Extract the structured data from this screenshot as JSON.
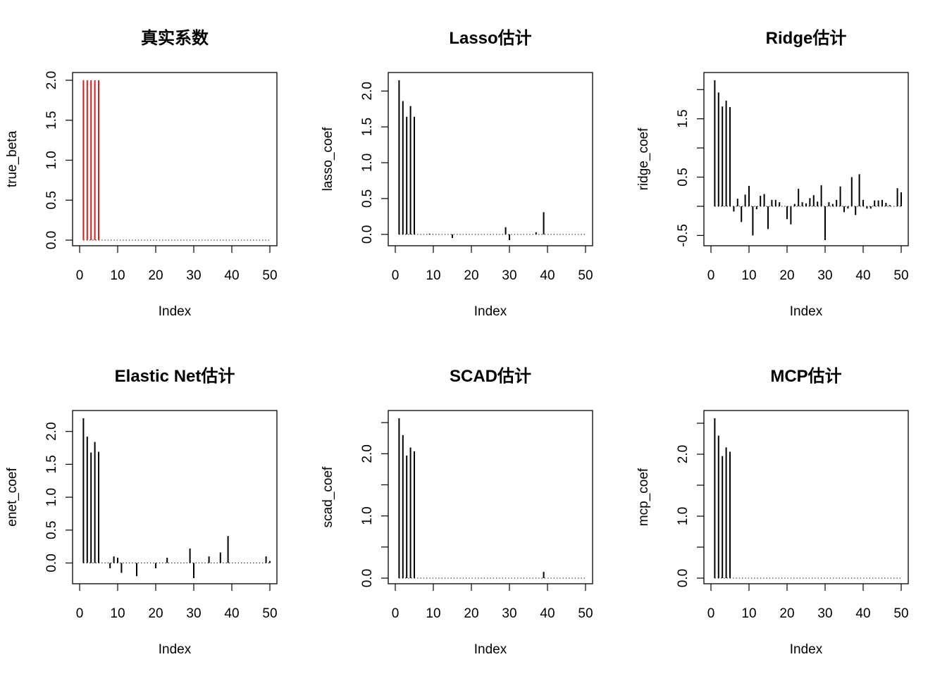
{
  "chart_data": [
    {
      "type": "bar",
      "title": "真实系数",
      "xlabel": "Index",
      "ylabel": "true_beta",
      "xlim": [
        0,
        50
      ],
      "ylim": [
        0,
        2
      ],
      "yticks": [
        0,
        0.5,
        1,
        1.5,
        2
      ],
      "yticklabels": [
        "0.0",
        "0.5",
        "1.0",
        "1.5",
        "2.0"
      ],
      "xticks": [
        0,
        10,
        20,
        30,
        40,
        50
      ],
      "color": "#e0191a",
      "values": [
        2,
        2,
        2,
        2,
        2,
        0,
        0,
        0,
        0,
        0,
        0,
        0,
        0,
        0,
        0,
        0,
        0,
        0,
        0,
        0,
        0,
        0,
        0,
        0,
        0,
        0,
        0,
        0,
        0,
        0,
        0,
        0,
        0,
        0,
        0,
        0,
        0,
        0,
        0,
        0,
        0,
        0,
        0,
        0,
        0,
        0,
        0,
        0,
        0,
        0
      ]
    },
    {
      "type": "bar",
      "title": "Lasso估计",
      "xlabel": "Index",
      "ylabel": "lasso_coef",
      "xlim": [
        0,
        50
      ],
      "ylim": [
        -0.08,
        2.15
      ],
      "yticks": [
        0,
        0.5,
        1,
        1.5,
        2
      ],
      "yticklabels": [
        "0.0",
        "0.5",
        "1.0",
        "1.5",
        "2.0"
      ],
      "xticks": [
        0,
        10,
        20,
        30,
        40,
        50
      ],
      "color": "#000000",
      "values": [
        2.15,
        1.86,
        1.64,
        1.79,
        1.64,
        0,
        0,
        0,
        0.01,
        0,
        0,
        0,
        0,
        0,
        -0.05,
        0,
        0,
        0,
        0,
        0,
        0,
        0,
        0,
        0,
        0,
        0,
        0,
        0,
        0.1,
        -0.08,
        0,
        0,
        0,
        0,
        0,
        0,
        0.03,
        0,
        0.31,
        0,
        0,
        0,
        0,
        0,
        0,
        0,
        0,
        0,
        0,
        0
      ]
    },
    {
      "type": "bar",
      "title": "Ridge估计",
      "xlabel": "Index",
      "ylabel": "ridge_coef",
      "xlim": [
        0,
        50
      ],
      "ylim": [
        -0.58,
        2.16
      ],
      "yticks": [
        -0.5,
        0,
        0.5,
        1,
        1.5,
        2
      ],
      "yticklabels": [
        "-0.5",
        "",
        "0.5",
        "",
        "1.5",
        ""
      ],
      "xticks": [
        0,
        10,
        20,
        30,
        40,
        50
      ],
      "color": "#000000",
      "values": [
        2.16,
        1.95,
        1.71,
        1.81,
        1.7,
        -0.09,
        0.13,
        -0.27,
        0.2,
        0.35,
        -0.5,
        -0.05,
        0.18,
        0.21,
        -0.39,
        0.11,
        0.11,
        0.07,
        0,
        -0.22,
        -0.31,
        0.04,
        0.3,
        0.07,
        0.05,
        0.14,
        0.19,
        0.08,
        0.36,
        -0.58,
        0.07,
        0.04,
        0.11,
        0.34,
        -0.1,
        -0.04,
        0.5,
        -0.15,
        0.55,
        0.11,
        -0.04,
        -0.04,
        0.1,
        0.1,
        0.11,
        0.06,
        0.02,
        0,
        0.31,
        0.24
      ]
    },
    {
      "type": "bar",
      "title": "Elastic Net估计",
      "xlabel": "Index",
      "ylabel": "enet_coef",
      "xlim": [
        0,
        50
      ],
      "ylim": [
        -0.23,
        2.2
      ],
      "yticks": [
        0,
        0.5,
        1,
        1.5,
        2
      ],
      "yticklabels": [
        "0.0",
        "0.5",
        "1.0",
        "1.5",
        "2.0"
      ],
      "xticks": [
        0,
        10,
        20,
        30,
        40,
        50
      ],
      "color": "#000000",
      "values": [
        2.2,
        1.92,
        1.68,
        1.84,
        1.69,
        0,
        0,
        -0.08,
        0.1,
        0.08,
        -0.15,
        0,
        0,
        0,
        -0.2,
        0,
        0,
        0,
        0,
        -0.08,
        0,
        0,
        0.08,
        0,
        0,
        0,
        0,
        0,
        0.22,
        -0.23,
        0,
        0,
        0,
        0.1,
        0,
        0,
        0.16,
        0,
        0.41,
        0,
        0,
        0,
        0,
        0,
        0,
        0,
        0,
        0,
        0.1,
        0.03
      ]
    },
    {
      "type": "bar",
      "title": "SCAD估计",
      "xlabel": "Index",
      "ylabel": "scad_coef",
      "xlim": [
        0,
        50
      ],
      "ylim": [
        0,
        2.57
      ],
      "yticks": [
        0,
        0.5,
        1,
        1.5,
        2,
        2.5
      ],
      "yticklabels": [
        "0.0",
        "",
        "1.0",
        "",
        "2.0",
        ""
      ],
      "xticks": [
        0,
        10,
        20,
        30,
        40,
        50
      ],
      "color": "#000000",
      "values": [
        2.57,
        2.3,
        1.97,
        2.1,
        2.04,
        0,
        0,
        0,
        0,
        0,
        0,
        0,
        0,
        0,
        0,
        0,
        0,
        0,
        0,
        0,
        0,
        0,
        0,
        0,
        0,
        0,
        0,
        0,
        0,
        0,
        0,
        0,
        0,
        0,
        0,
        0,
        0,
        0,
        0.1,
        0,
        0,
        0,
        0,
        0,
        0,
        0,
        0,
        0,
        0,
        0
      ]
    },
    {
      "type": "bar",
      "title": "MCP估计",
      "xlabel": "Index",
      "ylabel": "mcp_coef",
      "xlim": [
        0,
        50
      ],
      "ylim": [
        0,
        2.58
      ],
      "yticks": [
        0,
        0.5,
        1,
        1.5,
        2,
        2.5
      ],
      "yticklabels": [
        "0.0",
        "",
        "1.0",
        "",
        "2.0",
        ""
      ],
      "xticks": [
        0,
        10,
        20,
        30,
        40,
        50
      ],
      "color": "#000000",
      "values": [
        2.58,
        2.3,
        1.97,
        2.11,
        2.04,
        0,
        0,
        0,
        0,
        0,
        0,
        0,
        0,
        0,
        0,
        0,
        0,
        0,
        0,
        0,
        0,
        0,
        0,
        0,
        0,
        0,
        0,
        0,
        0,
        0,
        0,
        0,
        0,
        0,
        0,
        0,
        0,
        0,
        0,
        0,
        0,
        0,
        0,
        0,
        0,
        0,
        0,
        0,
        0,
        0
      ]
    }
  ]
}
